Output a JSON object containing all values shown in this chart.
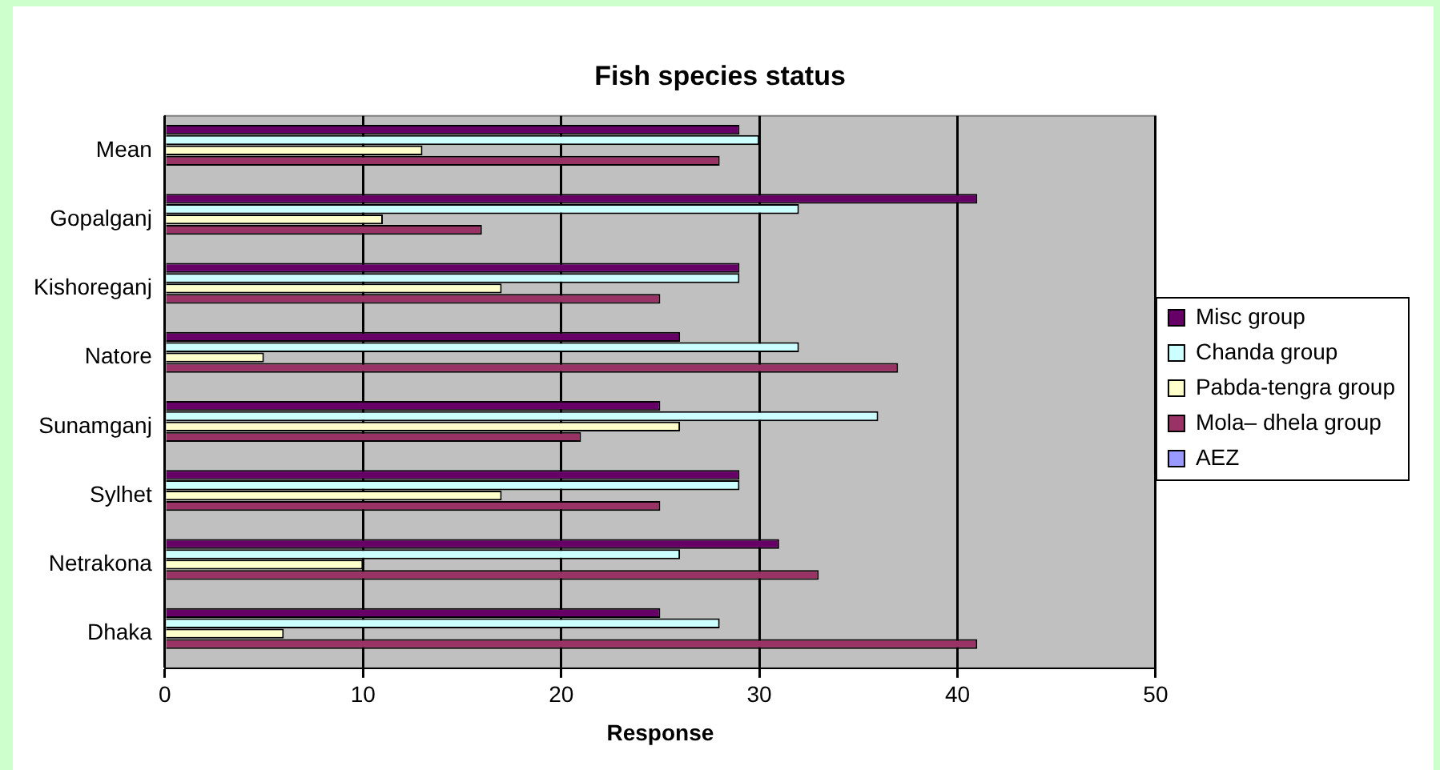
{
  "chart_data": {
    "type": "bar",
    "orientation": "horizontal",
    "title": "Fish species status",
    "xlabel": "Response",
    "categories": [
      "Mean",
      "Gopalganj",
      "Kishoreganj",
      "Natore",
      "Sunamganj",
      "Sylhet",
      "Netrakona",
      "Dhaka"
    ],
    "series": [
      {
        "name": "Misc group",
        "color": "#660066",
        "values": [
          29,
          41,
          29,
          26,
          25,
          29,
          31,
          25
        ]
      },
      {
        "name": "Chanda group",
        "color": "#ccffff",
        "values": [
          30,
          32,
          29,
          32,
          36,
          29,
          26,
          28
        ]
      },
      {
        "name": "Pabda-tengra group",
        "color": "#ffffcc",
        "values": [
          13,
          11,
          17,
          5,
          26,
          17,
          10,
          6
        ]
      },
      {
        "name": "Mola– dhela group",
        "color": "#993366",
        "values": [
          28,
          16,
          25,
          37,
          21,
          25,
          33,
          41
        ]
      },
      {
        "name": "AEZ",
        "color": "#9999ff",
        "values": [
          null,
          null,
          null,
          null,
          null,
          null,
          null,
          null
        ]
      }
    ],
    "xlim": [
      0,
      50
    ],
    "xticks": [
      0,
      10,
      20,
      30,
      40,
      50
    ],
    "grid": "x",
    "legend": "right"
  }
}
